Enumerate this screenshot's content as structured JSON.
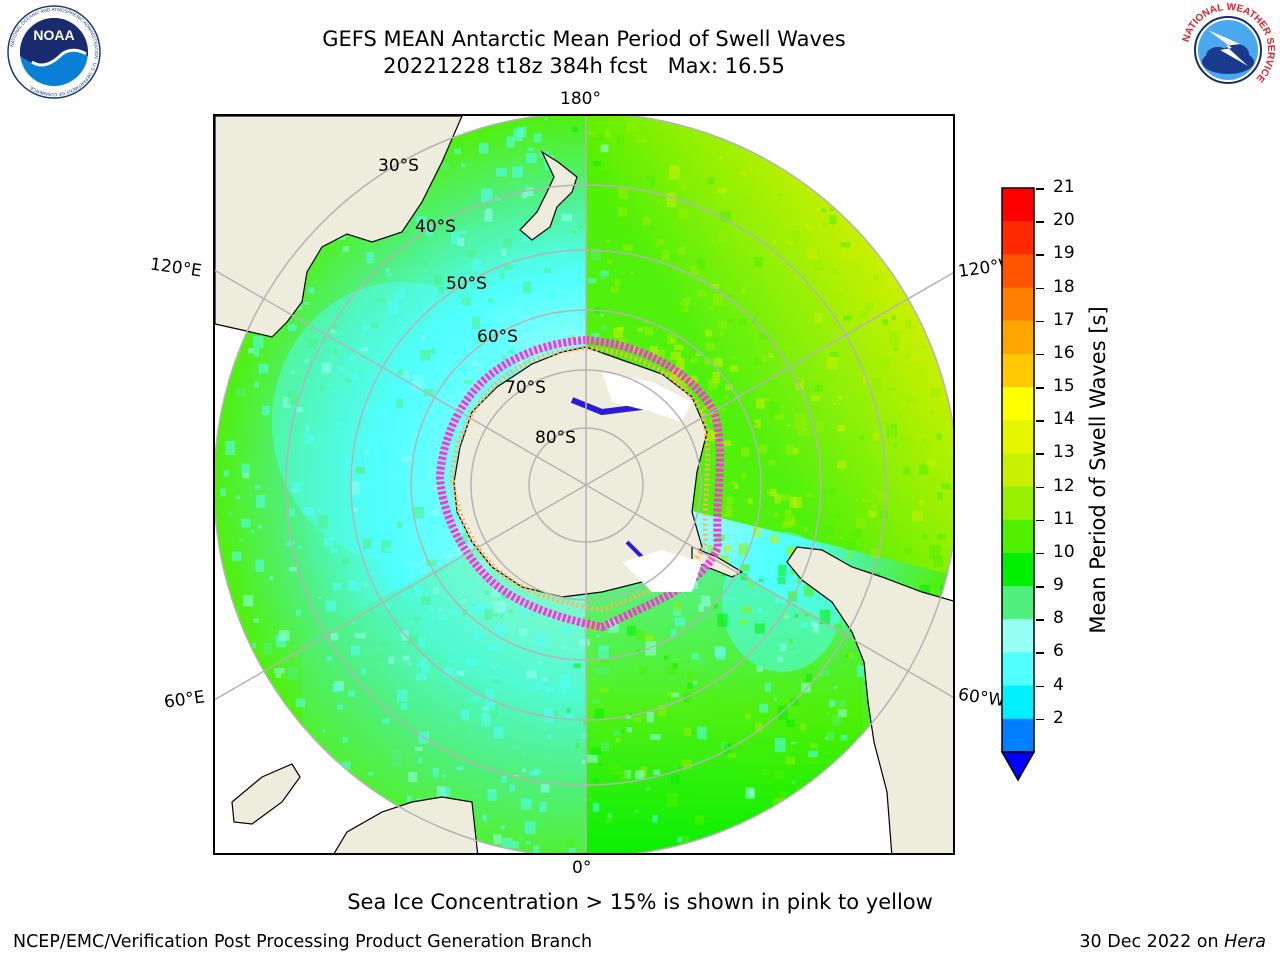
{
  "header": {
    "title": "GEFS MEAN Antarctic Mean Period of Swell Waves",
    "subtitle": "20221228 t18z 384h fcst   Max: 16.55"
  },
  "logos": {
    "left": "noaa-logo",
    "left_text": "NOAA",
    "left_ring_text": "NATIONAL OCEANIC AND ATMOSPHERIC ADMINISTRATION · U.S. DEPARTMENT OF COMMERCE",
    "right": "nws-logo",
    "right_ring_text": "NATIONAL WEATHER SERVICE"
  },
  "map": {
    "projection": "south-polar-stereographic",
    "longitude_labels": {
      "top": "180°",
      "bottom": "0°",
      "upper_left": "120°E",
      "upper_right": "120°W",
      "lower_left": "60°E",
      "lower_right": "60°W"
    },
    "latitude_labels": [
      "30°S",
      "40°S",
      "50°S",
      "60°S",
      "70°S",
      "80°S"
    ],
    "colors": {
      "land": "#eeecdc",
      "ice_magenta": "#ff33dd",
      "ice_orange": "#ffb060",
      "ice_blue": "#2b1bd9",
      "grid": "#b4b4b4"
    },
    "fields": {
      "max_value": 16.55,
      "units": "s"
    }
  },
  "colorbar": {
    "label": "Mean Period of Swell Waves [s]",
    "ticks": [
      "21",
      "20",
      "19",
      "18",
      "17",
      "16",
      "15",
      "14",
      "13",
      "12",
      "11",
      "10",
      "9",
      "8",
      "6",
      "4",
      "2"
    ],
    "colors_top_to_bottom": [
      "#ff0000",
      "#ff2a00",
      "#ff5500",
      "#ff7f00",
      "#ffa500",
      "#ffc800",
      "#ffff00",
      "#e6f500",
      "#c8f000",
      "#96f000",
      "#50f000",
      "#00f000",
      "#50f080",
      "#98fff6",
      "#50ffff",
      "#00f0ff",
      "#0080ff"
    ],
    "extend_color": "#0000ff",
    "range": [
      2,
      21
    ]
  },
  "caption": "Sea Ice Concentration > 15% is shown in pink to yellow",
  "footer": {
    "left": "NCEP/EMC/Verification Post Processing Product Generation Branch",
    "right_prefix": "30 Dec 2022 on ",
    "right_machine": "Hera"
  }
}
